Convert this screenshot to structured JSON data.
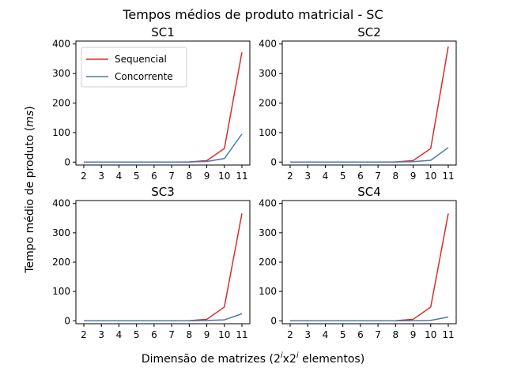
{
  "figure": {
    "title": "Tempos médios de produto matricial - SC",
    "xlabel_prefix": "Dimensão de matrizes (2",
    "xlabel_exp1": "i",
    "xlabel_mid": "x2",
    "xlabel_exp2": "i",
    "xlabel_suffix": " elementos)",
    "ylabel_prefix": "Tempo médio de produto (",
    "ylabel_unit": "ms",
    "ylabel_suffix": ")"
  },
  "colors": {
    "sequencial": "#d62f2a",
    "concorrente": "#4a78b0"
  },
  "legend": {
    "location": "upper-left of SC1",
    "entries": [
      "Sequencial",
      "Concorrente"
    ]
  },
  "chart_data": [
    {
      "type": "line",
      "title": "SC1",
      "x": [
        2,
        3,
        4,
        5,
        6,
        7,
        8,
        9,
        10,
        11
      ],
      "ylim": [
        0,
        400
      ],
      "yticks": [
        0,
        100,
        200,
        300,
        400
      ],
      "series": [
        {
          "name": "Sequencial",
          "values": [
            0,
            0,
            0,
            0,
            0,
            0,
            0.5,
            5,
            46,
            372
          ]
        },
        {
          "name": "Concorrente",
          "values": [
            0,
            0,
            0,
            0,
            0,
            0,
            0.5,
            2,
            12,
            95
          ]
        }
      ]
    },
    {
      "type": "line",
      "title": "SC2",
      "x": [
        2,
        3,
        4,
        5,
        6,
        7,
        8,
        9,
        10,
        11
      ],
      "ylim": [
        0,
        400
      ],
      "yticks": [
        0,
        100,
        200,
        300,
        400
      ],
      "series": [
        {
          "name": "Sequencial",
          "values": [
            0,
            0,
            0,
            0,
            0,
            0,
            0.5,
            5,
            46,
            392
          ]
        },
        {
          "name": "Concorrente",
          "values": [
            0,
            0,
            0,
            0,
            0,
            0,
            0.3,
            1.5,
            6,
            49
          ]
        }
      ]
    },
    {
      "type": "line",
      "title": "SC3",
      "x": [
        2,
        3,
        4,
        5,
        6,
        7,
        8,
        9,
        10,
        11
      ],
      "ylim": [
        0,
        400
      ],
      "yticks": [
        0,
        100,
        200,
        300,
        400
      ],
      "series": [
        {
          "name": "Sequencial",
          "values": [
            0,
            0,
            0,
            0,
            0,
            0,
            0.5,
            5,
            47,
            366
          ]
        },
        {
          "name": "Concorrente",
          "values": [
            0,
            0,
            0,
            0,
            0,
            0,
            0.2,
            1,
            3,
            24
          ]
        }
      ]
    },
    {
      "type": "line",
      "title": "SC4",
      "x": [
        2,
        3,
        4,
        5,
        6,
        7,
        8,
        9,
        10,
        11
      ],
      "ylim": [
        0,
        400
      ],
      "yticks": [
        0,
        100,
        200,
        300,
        400
      ],
      "series": [
        {
          "name": "Sequencial",
          "values": [
            0,
            0,
            0,
            0,
            0,
            0,
            0.5,
            5,
            47,
            366
          ]
        },
        {
          "name": "Concorrente",
          "values": [
            0,
            0,
            0,
            0,
            0,
            0,
            0.1,
            0.5,
            1.5,
            13
          ]
        }
      ]
    }
  ]
}
